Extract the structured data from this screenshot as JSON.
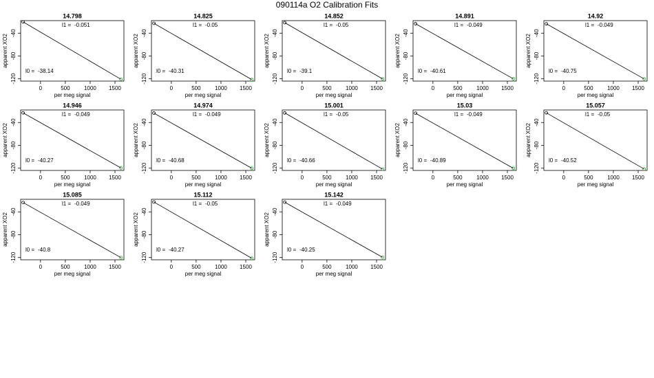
{
  "title": "090114a   O2 Calibration Fits",
  "chart_data": [
    {
      "type": "scatter",
      "title": "14.798",
      "xlabel": "per meg signal",
      "ylabel": "apparent XO2",
      "x": [
        -350,
        1620
      ],
      "values": [
        -20.3,
        -120.8
      ],
      "colors": [
        "#000000",
        "#00c000"
      ],
      "fit": {
        "l1_label": "l1 =",
        "l1": -0.051,
        "l0_label": "l0 =",
        "l0": -38.14
      },
      "xlim": [
        -400,
        1680
      ],
      "ylim": [
        -124,
        -18
      ],
      "xticks": [
        0,
        500,
        1000,
        1500
      ],
      "yticks": [
        -40,
        -80,
        -120
      ]
    },
    {
      "type": "scatter",
      "title": "14.825",
      "xlabel": "per meg signal",
      "ylabel": "apparent XO2",
      "x": [
        -350,
        1620
      ],
      "values": [
        -22.8,
        -121.3
      ],
      "colors": [
        "#000000",
        "#00c000"
      ],
      "fit": {
        "l1_label": "l1 =",
        "l1": -0.05,
        "l0_label": "l0 =",
        "l0": -40.31
      },
      "xlim": [
        -400,
        1680
      ],
      "ylim": [
        -124,
        -18
      ],
      "xticks": [
        0,
        500,
        1000,
        1500
      ],
      "yticks": [
        -40,
        -80,
        -120
      ]
    },
    {
      "type": "scatter",
      "title": "14.852",
      "xlabel": "per meg signal",
      "ylabel": "apparent XO2",
      "x": [
        -350,
        1620
      ],
      "values": [
        -21.6,
        -120.1
      ],
      "colors": [
        "#000000",
        "#00c000"
      ],
      "fit": {
        "l1_label": "l1 =",
        "l1": -0.05,
        "l0_label": "l0 =",
        "l0": -39.1
      },
      "xlim": [
        -400,
        1680
      ],
      "ylim": [
        -124,
        -18
      ],
      "xticks": [
        0,
        500,
        1000,
        1500
      ],
      "yticks": [
        -40,
        -80,
        -120
      ]
    },
    {
      "type": "scatter",
      "title": "14.891",
      "xlabel": "per meg signal",
      "ylabel": "apparent XO2",
      "x": [
        -350,
        1620
      ],
      "values": [
        -23.5,
        -120.0
      ],
      "colors": [
        "#000000",
        "#00c000"
      ],
      "fit": {
        "l1_label": "l1 =",
        "l1": -0.049,
        "l0_label": "l0 =",
        "l0": -40.61
      },
      "xlim": [
        -400,
        1680
      ],
      "ylim": [
        -124,
        -18
      ],
      "xticks": [
        0,
        500,
        1000,
        1500
      ],
      "yticks": [
        -40,
        -80,
        -120
      ]
    },
    {
      "type": "scatter",
      "title": "14.92",
      "xlabel": "per meg signal",
      "ylabel": "apparent XO2",
      "x": [
        -350,
        1620
      ],
      "values": [
        -23.6,
        -120.1
      ],
      "colors": [
        "#000000",
        "#00c000"
      ],
      "fit": {
        "l1_label": "l1 =",
        "l1": -0.049,
        "l0_label": "l0 =",
        "l0": -40.75
      },
      "xlim": [
        -400,
        1680
      ],
      "ylim": [
        -124,
        -18
      ],
      "xticks": [
        0,
        500,
        1000,
        1500
      ],
      "yticks": [
        -40,
        -80,
        -120
      ]
    },
    {
      "type": "scatter",
      "title": "14.946",
      "xlabel": "per meg signal",
      "ylabel": "apparent XO2",
      "x": [
        -350,
        1620
      ],
      "values": [
        -23.1,
        -119.7
      ],
      "colors": [
        "#000000",
        "#00c000"
      ],
      "fit": {
        "l1_label": "l1 =",
        "l1": -0.049,
        "l0_label": "l0 =",
        "l0": -40.27
      },
      "xlim": [
        -400,
        1680
      ],
      "ylim": [
        -124,
        -18
      ],
      "xticks": [
        0,
        500,
        1000,
        1500
      ],
      "yticks": [
        -40,
        -80,
        -120
      ]
    },
    {
      "type": "scatter",
      "title": "14.974",
      "xlabel": "per meg signal",
      "ylabel": "apparent XO2",
      "x": [
        -350,
        1620
      ],
      "values": [
        -23.5,
        -120.1
      ],
      "colors": [
        "#000000",
        "#00c000"
      ],
      "fit": {
        "l1_label": "l1 =",
        "l1": -0.049,
        "l0_label": "l0 =",
        "l0": -40.68
      },
      "xlim": [
        -400,
        1680
      ],
      "ylim": [
        -124,
        -18
      ],
      "xticks": [
        0,
        500,
        1000,
        1500
      ],
      "yticks": [
        -40,
        -80,
        -120
      ]
    },
    {
      "type": "scatter",
      "title": "15.001",
      "xlabel": "per meg signal",
      "ylabel": "apparent XO2",
      "x": [
        -350,
        1620
      ],
      "values": [
        -23.2,
        -121.7
      ],
      "colors": [
        "#000000",
        "#00c000"
      ],
      "fit": {
        "l1_label": "l1 =",
        "l1": -0.05,
        "l0_label": "l0 =",
        "l0": -40.66
      },
      "xlim": [
        -400,
        1680
      ],
      "ylim": [
        -124,
        -18
      ],
      "xticks": [
        0,
        500,
        1000,
        1500
      ],
      "yticks": [
        -40,
        -80,
        -120
      ]
    },
    {
      "type": "scatter",
      "title": "15.03",
      "xlabel": "per meg signal",
      "ylabel": "apparent XO2",
      "x": [
        -350,
        1620
      ],
      "values": [
        -23.7,
        -120.3
      ],
      "colors": [
        "#000000",
        "#00c000"
      ],
      "fit": {
        "l1_label": "l1 =",
        "l1": -0.049,
        "l0_label": "l0 =",
        "l0": -40.89
      },
      "xlim": [
        -400,
        1680
      ],
      "ylim": [
        -124,
        -18
      ],
      "xticks": [
        0,
        500,
        1000,
        1500
      ],
      "yticks": [
        -40,
        -80,
        -120
      ]
    },
    {
      "type": "scatter",
      "title": "15.057",
      "xlabel": "per meg signal",
      "ylabel": "apparent XO2",
      "x": [
        -350,
        1620
      ],
      "values": [
        -23.0,
        -121.5
      ],
      "colors": [
        "#000000",
        "#00c000"
      ],
      "fit": {
        "l1_label": "l1 =",
        "l1": -0.05,
        "l0_label": "l0 =",
        "l0": -40.52
      },
      "xlim": [
        -400,
        1680
      ],
      "ylim": [
        -124,
        -18
      ],
      "xticks": [
        0,
        500,
        1000,
        1500
      ],
      "yticks": [
        -40,
        -80,
        -120
      ]
    },
    {
      "type": "scatter",
      "title": "15.085",
      "xlabel": "per meg signal",
      "ylabel": "apparent XO2",
      "x": [
        -350,
        1620
      ],
      "values": [
        -23.7,
        -120.2
      ],
      "colors": [
        "#000000",
        "#00c000"
      ],
      "fit": {
        "l1_label": "l1 =",
        "l1": -0.049,
        "l0_label": "l0 =",
        "l0": -40.8
      },
      "xlim": [
        -400,
        1680
      ],
      "ylim": [
        -124,
        -18
      ],
      "xticks": [
        0,
        500,
        1000,
        1500
      ],
      "yticks": [
        -40,
        -80,
        -120
      ]
    },
    {
      "type": "scatter",
      "title": "15.112",
      "xlabel": "per meg signal",
      "ylabel": "apparent XO2",
      "x": [
        -350,
        1620
      ],
      "values": [
        -22.8,
        -121.3
      ],
      "colors": [
        "#000000",
        "#00c000"
      ],
      "fit": {
        "l1_label": "l1 =",
        "l1": -0.05,
        "l0_label": "l0 =",
        "l0": -40.27
      },
      "xlim": [
        -400,
        1680
      ],
      "ylim": [
        -124,
        -18
      ],
      "xticks": [
        0,
        500,
        1000,
        1500
      ],
      "yticks": [
        -40,
        -80,
        -120
      ]
    },
    {
      "type": "scatter",
      "title": "15.142",
      "xlabel": "per meg signal",
      "ylabel": "apparent XO2",
      "x": [
        -350,
        1620
      ],
      "values": [
        -23.1,
        -119.6
      ],
      "colors": [
        "#000000",
        "#00c000"
      ],
      "fit": {
        "l1_label": "l1 =",
        "l1": -0.049,
        "l0_label": "l0 =",
        "l0": -40.25
      },
      "xlim": [
        -400,
        1680
      ],
      "ylim": [
        -124,
        -18
      ],
      "xticks": [
        0,
        500,
        1000,
        1500
      ],
      "yticks": [
        -40,
        -80,
        -120
      ]
    }
  ]
}
